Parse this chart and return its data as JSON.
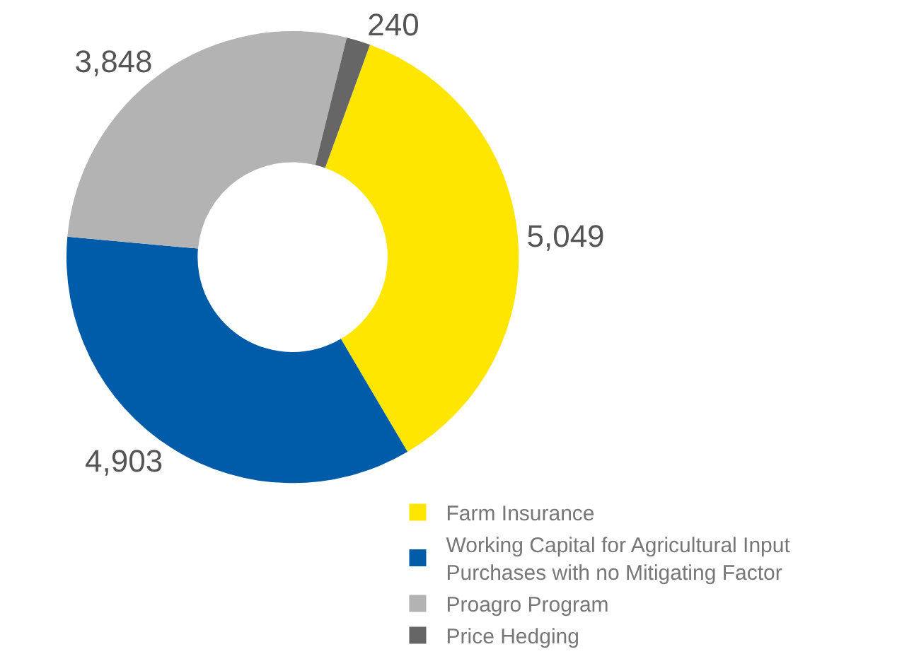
{
  "chart_data": {
    "type": "donut",
    "categories": [
      "Farm Insurance",
      "Working Capital for Agricultural Input Purchases with no Mitigating Factor",
      "Proagro Program",
      "Price Hedging"
    ],
    "values": [
      5049,
      4903,
      3848,
      240
    ],
    "colors": [
      "#ffe600",
      "#005ca9",
      "#b3b3b3",
      "#666666"
    ],
    "value_labels": [
      "5,049",
      "4,903",
      "3,848",
      "240"
    ],
    "legend": "bottom right"
  }
}
